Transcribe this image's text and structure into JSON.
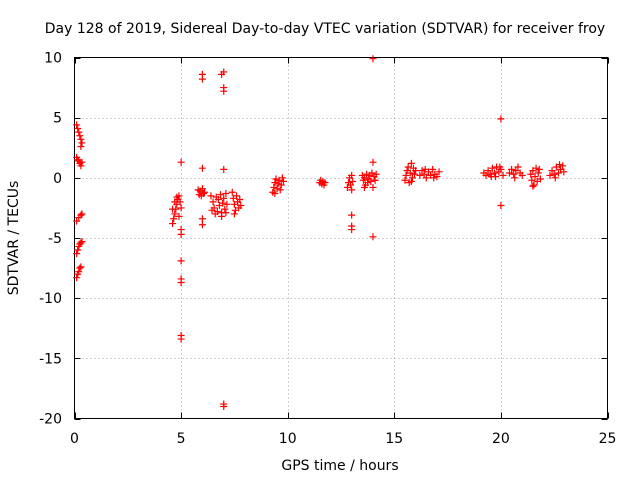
{
  "chart_data": {
    "type": "scatter",
    "title": "Day 128 of 2019, Sidereal Day-to-day VTEC variation (SDTVAR) for receiver froy",
    "xlabel": "GPS time / hours",
    "ylabel": "SDTVAR / TECUs",
    "xlim": [
      0,
      25
    ],
    "ylim": [
      -20,
      10
    ],
    "xticks": [
      0,
      5,
      10,
      15,
      20,
      25
    ],
    "yticks": [
      -20,
      -15,
      -10,
      -5,
      0,
      5,
      10
    ],
    "xtick_labels": [
      "0",
      "5",
      "10",
      "15",
      "20",
      "25"
    ],
    "ytick_labels": [
      "-20",
      "-15",
      "-10",
      "-5",
      "0",
      "5",
      "10"
    ],
    "grid": true,
    "marker": "+",
    "color": "#ff0000",
    "series": [
      {
        "name": "SDTVAR",
        "points": [
          [
            0.1,
            4.4
          ],
          [
            0.15,
            4.1
          ],
          [
            0.2,
            3.8
          ],
          [
            0.25,
            3.5
          ],
          [
            0.3,
            3.2
          ],
          [
            0.35,
            2.9
          ],
          [
            0.3,
            2.6
          ],
          [
            0.1,
            1.7
          ],
          [
            0.15,
            1.5
          ],
          [
            0.2,
            1.4
          ],
          [
            0.25,
            1.2
          ],
          [
            0.3,
            1.0
          ],
          [
            0.35,
            1.3
          ],
          [
            0.1,
            -3.6
          ],
          [
            0.2,
            -3.3
          ],
          [
            0.3,
            -3.1
          ],
          [
            0.35,
            -3.0
          ],
          [
            0.1,
            -6.3
          ],
          [
            0.15,
            -6.0
          ],
          [
            0.2,
            -5.7
          ],
          [
            0.25,
            -5.5
          ],
          [
            0.3,
            -5.4
          ],
          [
            0.35,
            -5.3
          ],
          [
            0.1,
            -8.3
          ],
          [
            0.15,
            -8.0
          ],
          [
            0.2,
            -7.8
          ],
          [
            0.25,
            -7.5
          ],
          [
            0.3,
            -7.4
          ],
          [
            4.6,
            -3.8
          ],
          [
            4.65,
            -3.4
          ],
          [
            4.7,
            -3.0
          ],
          [
            4.75,
            -2.6
          ],
          [
            4.8,
            -2.2
          ],
          [
            4.85,
            -1.8
          ],
          [
            4.9,
            -1.5
          ],
          [
            4.95,
            -2.0
          ],
          [
            5.0,
            -2.5
          ],
          [
            4.7,
            -2.0
          ],
          [
            4.9,
            -3.2
          ],
          [
            4.8,
            -1.6
          ],
          [
            4.6,
            -2.6
          ],
          [
            5.0,
            -4.3
          ],
          [
            5.0,
            -4.7
          ],
          [
            5.0,
            1.3
          ],
          [
            5.0,
            -6.9
          ],
          [
            5.0,
            -8.4
          ],
          [
            5.0,
            -8.7
          ],
          [
            5.0,
            -13.1
          ],
          [
            5.0,
            -13.4
          ],
          [
            5.8,
            -1.0
          ],
          [
            5.85,
            -1.4
          ],
          [
            5.9,
            -1.1
          ],
          [
            5.95,
            -1.5
          ],
          [
            6.0,
            -0.9
          ],
          [
            6.05,
            -1.3
          ],
          [
            6.1,
            -1.2
          ],
          [
            6.0,
            8.2
          ],
          [
            6.0,
            8.6
          ],
          [
            6.0,
            0.8
          ],
          [
            6.0,
            -3.4
          ],
          [
            6.0,
            -3.9
          ],
          [
            6.4,
            -1.5
          ],
          [
            6.5,
            -2.0
          ],
          [
            6.55,
            -2.5
          ],
          [
            6.6,
            -3.0
          ],
          [
            6.7,
            -2.8
          ],
          [
            6.75,
            -1.8
          ],
          [
            6.8,
            -2.3
          ],
          [
            6.85,
            -1.4
          ],
          [
            6.9,
            -2.9
          ],
          [
            6.95,
            -2.1
          ],
          [
            7.0,
            -1.7
          ],
          [
            7.05,
            -2.6
          ],
          [
            7.1,
            -1.3
          ],
          [
            7.15,
            -2.2
          ],
          [
            6.65,
            -1.6
          ],
          [
            6.45,
            -2.7
          ],
          [
            6.9,
            -3.2
          ],
          [
            7.1,
            -2.9
          ],
          [
            7.0,
            8.8
          ],
          [
            6.9,
            8.6
          ],
          [
            7.0,
            7.5
          ],
          [
            7.0,
            7.2
          ],
          [
            7.0,
            0.7
          ],
          [
            7.0,
            -18.8
          ],
          [
            7.0,
            -19.0
          ],
          [
            7.4,
            -1.2
          ],
          [
            7.45,
            -1.7
          ],
          [
            7.5,
            -2.2
          ],
          [
            7.55,
            -2.7
          ],
          [
            7.6,
            -1.5
          ],
          [
            7.65,
            -2.0
          ],
          [
            7.7,
            -2.5
          ],
          [
            7.75,
            -1.8
          ],
          [
            7.8,
            -2.3
          ],
          [
            7.5,
            -3.0
          ],
          [
            9.3,
            -1.2
          ],
          [
            9.35,
            -0.8
          ],
          [
            9.4,
            -0.4
          ],
          [
            9.45,
            -0.1
          ],
          [
            9.5,
            -0.9
          ],
          [
            9.55,
            -0.5
          ],
          [
            9.6,
            -0.2
          ],
          [
            9.65,
            -1.0
          ],
          [
            9.7,
            -0.6
          ],
          [
            9.75,
            0.0
          ],
          [
            9.8,
            -0.3
          ],
          [
            9.4,
            -1.3
          ],
          [
            11.5,
            -0.4
          ],
          [
            11.55,
            -0.2
          ],
          [
            11.6,
            -0.5
          ],
          [
            11.65,
            -0.3
          ],
          [
            11.7,
            -0.6
          ],
          [
            11.75,
            -0.4
          ],
          [
            12.8,
            -0.8
          ],
          [
            12.85,
            -0.4
          ],
          [
            12.9,
            0.0
          ],
          [
            12.95,
            -0.6
          ],
          [
            13.0,
            0.2
          ],
          [
            13.0,
            -1.0
          ],
          [
            13.05,
            -0.3
          ],
          [
            13.0,
            -3.1
          ],
          [
            13.0,
            -4.0
          ],
          [
            13.0,
            -4.3
          ],
          [
            13.5,
            0.2
          ],
          [
            13.55,
            -0.2
          ],
          [
            13.6,
            0.0
          ],
          [
            13.65,
            -0.6
          ],
          [
            13.7,
            0.3
          ],
          [
            13.75,
            -0.4
          ],
          [
            13.8,
            -0.1
          ],
          [
            13.85,
            0.2
          ],
          [
            13.9,
            -0.3
          ],
          [
            13.95,
            0.4
          ],
          [
            14.0,
            -0.8
          ],
          [
            14.05,
            0.1
          ],
          [
            14.1,
            -0.2
          ],
          [
            14.15,
            0.3
          ],
          [
            13.6,
            -0.8
          ],
          [
            14.0,
            9.9
          ],
          [
            14.0,
            1.3
          ],
          [
            14.0,
            -4.9
          ],
          [
            15.5,
            -0.2
          ],
          [
            15.55,
            0.2
          ],
          [
            15.6,
            0.6
          ],
          [
            15.65,
            0.9
          ],
          [
            15.7,
            -0.4
          ],
          [
            15.75,
            0.4
          ],
          [
            15.8,
            1.2
          ],
          [
            15.85,
            0.0
          ],
          [
            15.9,
            0.8
          ],
          [
            15.95,
            0.3
          ],
          [
            16.0,
            0.6
          ],
          [
            15.8,
            -0.3
          ],
          [
            16.2,
            0.2
          ],
          [
            16.3,
            0.6
          ],
          [
            16.4,
            0.3
          ],
          [
            16.5,
            0.0
          ],
          [
            16.6,
            0.5
          ],
          [
            16.7,
            0.2
          ],
          [
            16.8,
            0.7
          ],
          [
            16.9,
            0.3
          ],
          [
            17.0,
            0.1
          ],
          [
            17.1,
            0.5
          ],
          [
            16.45,
            0.7
          ],
          [
            16.85,
            0.0
          ],
          [
            19.2,
            0.4
          ],
          [
            19.3,
            0.2
          ],
          [
            19.4,
            0.6
          ],
          [
            19.5,
            0.3
          ],
          [
            19.6,
            0.8
          ],
          [
            19.7,
            0.4
          ],
          [
            19.8,
            0.9
          ],
          [
            19.9,
            0.5
          ],
          [
            20.0,
            0.7
          ],
          [
            20.1,
            0.2
          ],
          [
            19.55,
            0.1
          ],
          [
            19.95,
            0.9
          ],
          [
            19.75,
            0.1
          ],
          [
            20.0,
            4.9
          ],
          [
            20.0,
            -2.3
          ],
          [
            20.4,
            0.4
          ],
          [
            20.5,
            0.7
          ],
          [
            20.6,
            0.3
          ],
          [
            20.7,
            0.6
          ],
          [
            20.8,
            0.9
          ],
          [
            20.9,
            0.4
          ],
          [
            21.0,
            0.2
          ],
          [
            20.65,
            0.0
          ],
          [
            21.4,
            0.3
          ],
          [
            21.45,
            -0.2
          ],
          [
            21.5,
            0.6
          ],
          [
            21.55,
            -0.6
          ],
          [
            21.6,
            0.1
          ],
          [
            21.65,
            0.8
          ],
          [
            21.7,
            -0.3
          ],
          [
            21.75,
            0.4
          ],
          [
            21.8,
            0.7
          ],
          [
            21.85,
            -0.1
          ],
          [
            21.5,
            -0.7
          ],
          [
            22.3,
            0.2
          ],
          [
            22.4,
            0.6
          ],
          [
            22.5,
            0.3
          ],
          [
            22.6,
            0.9
          ],
          [
            22.7,
            0.4
          ],
          [
            22.8,
            0.7
          ],
          [
            22.9,
            1.0
          ],
          [
            22.95,
            0.5
          ],
          [
            22.55,
            0.0
          ],
          [
            22.75,
            1.1
          ]
        ]
      }
    ]
  }
}
